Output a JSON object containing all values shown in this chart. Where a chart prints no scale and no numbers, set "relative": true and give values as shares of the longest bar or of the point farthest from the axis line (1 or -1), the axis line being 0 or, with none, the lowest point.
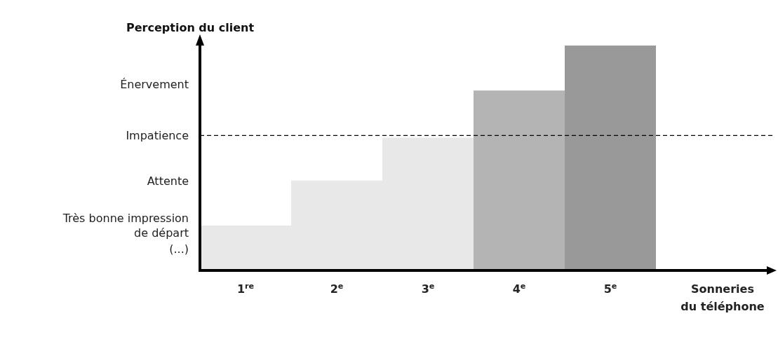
{
  "chart_data": {
    "type": "bar",
    "relative": true,
    "ylabel": "Perception du client",
    "xlabel": "Sonneries du téléphone",
    "categories": [
      "1$^{re}$",
      "2$^{e}$",
      "3$^{e}$",
      "4$^{e}$",
      "5$^{e}$"
    ],
    "values": [
      0.2,
      0.4,
      0.59,
      0.8,
      1
    ],
    "colors": [
      "#e8e8e8",
      "#e8e8e8",
      "#e8e8e8",
      "#b4b4b4",
      "#999999"
    ],
    "ref_lines": [
      {
        "axis": "y",
        "value": 0.6,
        "label": "Impatience",
        "line_style": "dashed",
        "color": "#000000"
      }
    ],
    "annotations": [
      "Énervement",
      "Attente",
      "Très bonne impression de départ",
      "(...)"
    ]
  }
}
